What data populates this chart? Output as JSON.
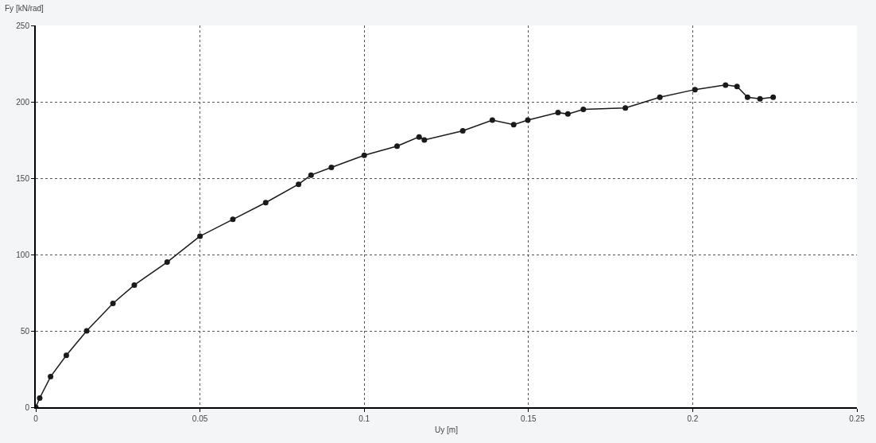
{
  "chart_data": {
    "type": "line",
    "xlabel": "Uy [m]",
    "ylabel": "Fy [kN/rad]",
    "x": [
      0,
      0.0012,
      0.0045,
      0.0093,
      0.0155,
      0.0235,
      0.03,
      0.04,
      0.05,
      0.06,
      0.07,
      0.08,
      0.0838,
      0.09,
      0.1,
      0.11,
      0.1167,
      0.1183,
      0.13,
      0.139,
      0.1455,
      0.1498,
      0.159,
      0.162,
      0.1667,
      0.1795,
      0.19,
      0.2007,
      0.21,
      0.2135,
      0.2167,
      0.2205,
      0.2245
    ],
    "series": [
      {
        "color": "#1a1a1a",
        "values": [
          0,
          6,
          20,
          34,
          50,
          68,
          80,
          95,
          112,
          123,
          134,
          146,
          152,
          157,
          165,
          171,
          177,
          175,
          181,
          188,
          185,
          188,
          193,
          192,
          195,
          196,
          203,
          208,
          211,
          210,
          203,
          202,
          203
        ]
      }
    ],
    "xlim": [
      0,
      0.25
    ],
    "xticks": [
      0,
      0.05,
      0.1,
      0.15,
      0.2,
      0.25
    ],
    "ylim": [
      0,
      250
    ],
    "yticks": [
      0,
      50,
      100,
      150,
      200,
      250
    ],
    "grid": true,
    "marker": "circle",
    "line_style": "solid"
  }
}
